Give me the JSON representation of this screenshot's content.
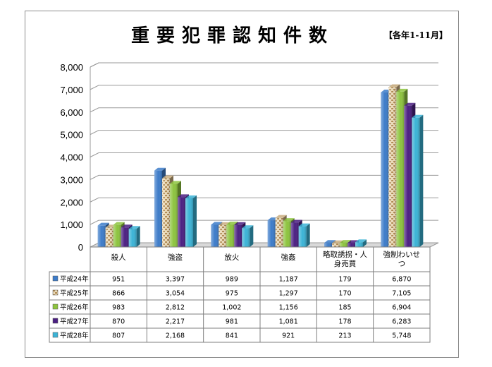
{
  "title": "重要犯罪認知件数",
  "subtitle": "【各年1-11月】",
  "chart_data": {
    "type": "bar",
    "title": "重要犯罪認知件数",
    "subtitle": "【各年1-11月】",
    "categories": [
      [
        "殺人"
      ],
      [
        "強盗"
      ],
      [
        "放火"
      ],
      [
        "強姦"
      ],
      [
        "略取誘拐・人",
        "身売買"
      ],
      [
        "強制わいせ",
        "つ"
      ]
    ],
    "ylim": [
      0,
      8000
    ],
    "yticks": [
      "0",
      "1,000",
      "2,000",
      "3,000",
      "4,000",
      "5,000",
      "6,000",
      "7,000",
      "8,000"
    ],
    "ytick_values": [
      0,
      1000,
      2000,
      3000,
      4000,
      5000,
      6000,
      7000,
      8000
    ],
    "grid": true,
    "legend": "data-table-left",
    "series": [
      {
        "name": "平成24年",
        "color": "#3d7cc9",
        "pattern": "solid",
        "values": [
          951,
          3397,
          989,
          1187,
          179,
          6870
        ],
        "labels": [
          "951",
          "3,397",
          "989",
          "1,187",
          "179",
          "6,870"
        ]
      },
      {
        "name": "平成25年",
        "color": "#c9ad7f",
        "pattern": "brick",
        "values": [
          866,
          3054,
          975,
          1297,
          170,
          7105
        ],
        "labels": [
          "866",
          "3,054",
          "975",
          "1,297",
          "170",
          "7,105"
        ]
      },
      {
        "name": "平成26年",
        "color": "#8dc43e",
        "pattern": "solid",
        "values": [
          983,
          2812,
          1002,
          1156,
          185,
          6904
        ],
        "labels": [
          "983",
          "2,812",
          "1,002",
          "1,156",
          "185",
          "6,904"
        ]
      },
      {
        "name": "平成27年",
        "color": "#4b1f82",
        "pattern": "solid",
        "values": [
          870,
          2217,
          981,
          1081,
          178,
          6283
        ],
        "labels": [
          "870",
          "2,217",
          "981",
          "1,081",
          "178",
          "6,283"
        ]
      },
      {
        "name": "平成28年",
        "color": "#3bb3d6",
        "pattern": "solid",
        "values": [
          807,
          2168,
          841,
          921,
          213,
          5748
        ],
        "labels": [
          "807",
          "2,168",
          "841",
          "921",
          "213",
          "5,748"
        ]
      }
    ]
  }
}
